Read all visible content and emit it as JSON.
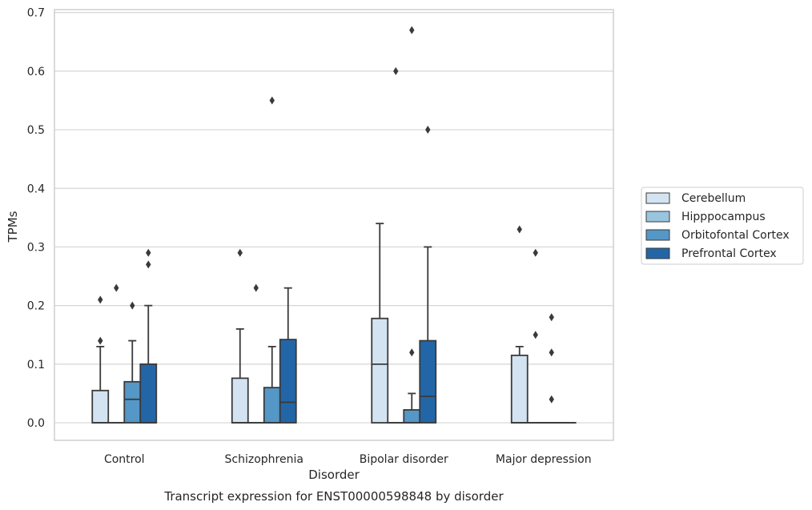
{
  "chart_data": {
    "type": "box",
    "xlabel": "Disorder",
    "ylabel": "TPMs",
    "caption": "Transcript expression for ENST00000598848 by disorder",
    "ylim": [
      -0.03,
      0.705
    ],
    "yticks": [
      0.0,
      0.1,
      0.2,
      0.3,
      0.4,
      0.5,
      0.6,
      0.7
    ],
    "ytick_labels": [
      "0.0",
      "0.1",
      "0.2",
      "0.3",
      "0.4",
      "0.5",
      "0.6",
      "0.7"
    ],
    "grid": "horizontal",
    "legend_position": "right",
    "categories": [
      "Control",
      "Schizophrenia",
      "Bipolar disorder",
      "Major depression"
    ],
    "series": [
      {
        "name": "Cerebellum",
        "color": "#d3e3f2",
        "boxes": [
          {
            "q1": 0.0,
            "median": 0.0,
            "q3": 0.055,
            "whislo": 0.0,
            "whishi": 0.13,
            "fliers": [
              0.14,
              0.21
            ]
          },
          {
            "q1": 0.0,
            "median": 0.0,
            "q3": 0.076,
            "whislo": 0.0,
            "whishi": 0.16,
            "fliers": [
              0.29
            ]
          },
          {
            "q1": 0.0,
            "median": 0.1,
            "q3": 0.178,
            "whislo": 0.0,
            "whishi": 0.34,
            "fliers": []
          },
          {
            "q1": 0.0,
            "median": 0.0,
            "q3": 0.115,
            "whislo": 0.0,
            "whishi": 0.13,
            "fliers": [
              0.33
            ]
          }
        ]
      },
      {
        "name": "Hipppocampus",
        "color": "#9ac5de",
        "boxes": [
          {
            "q1": 0.0,
            "median": 0.0,
            "q3": 0.0,
            "whislo": 0.0,
            "whishi": 0.0,
            "fliers": [
              0.23
            ]
          },
          {
            "q1": 0.0,
            "median": 0.0,
            "q3": 0.0,
            "whislo": 0.0,
            "whishi": 0.0,
            "fliers": [
              0.23
            ]
          },
          {
            "q1": 0.0,
            "median": 0.0,
            "q3": 0.0,
            "whislo": 0.0,
            "whishi": 0.0,
            "fliers": [
              0.6
            ]
          },
          {
            "q1": 0.0,
            "median": 0.0,
            "q3": 0.0,
            "whislo": 0.0,
            "whishi": 0.0,
            "fliers": [
              0.15,
              0.29
            ]
          }
        ]
      },
      {
        "name": "Orbitofontal Cortex",
        "color": "#5597c6",
        "boxes": [
          {
            "q1": 0.0,
            "median": 0.04,
            "q3": 0.07,
            "whislo": 0.0,
            "whishi": 0.14,
            "fliers": [
              0.2
            ]
          },
          {
            "q1": 0.0,
            "median": 0.0,
            "q3": 0.06,
            "whislo": 0.0,
            "whishi": 0.13,
            "fliers": [
              0.55
            ]
          },
          {
            "q1": 0.0,
            "median": 0.0,
            "q3": 0.022,
            "whislo": 0.0,
            "whishi": 0.05,
            "fliers": [
              0.12,
              0.67
            ]
          },
          {
            "q1": 0.0,
            "median": 0.0,
            "q3": 0.0,
            "whislo": 0.0,
            "whishi": 0.0,
            "fliers": [
              0.04,
              0.12,
              0.18
            ]
          }
        ]
      },
      {
        "name": "Prefrontal Cortex",
        "color": "#2366a7",
        "boxes": [
          {
            "q1": 0.0,
            "median": 0.0,
            "q3": 0.1,
            "whislo": 0.0,
            "whishi": 0.2,
            "fliers": [
              0.27,
              0.29
            ]
          },
          {
            "q1": 0.0,
            "median": 0.035,
            "q3": 0.142,
            "whislo": 0.0,
            "whishi": 0.23,
            "fliers": []
          },
          {
            "q1": 0.0,
            "median": 0.045,
            "q3": 0.14,
            "whislo": 0.0,
            "whishi": 0.3,
            "fliers": [
              0.5
            ]
          },
          {
            "q1": 0.0,
            "median": 0.0,
            "q3": 0.0,
            "whislo": 0.0,
            "whishi": 0.0,
            "fliers": []
          }
        ]
      }
    ]
  }
}
